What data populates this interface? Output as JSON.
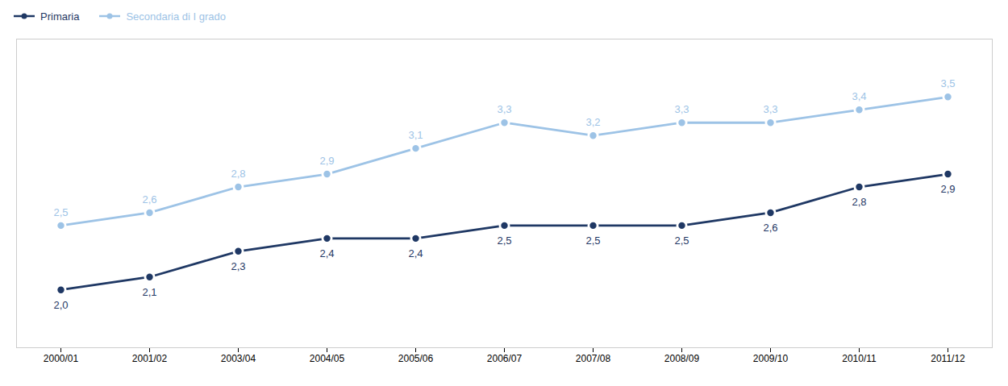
{
  "chart_data": {
    "type": "line",
    "categories": [
      "2000/01",
      "2001/02",
      "2003/04",
      "2004/05",
      "2005/06",
      "2006/07",
      "2007/08",
      "2008/09",
      "2009/10",
      "2010/11",
      "2011/12"
    ],
    "series": [
      {
        "name": "Primaria",
        "color": "#1F3864",
        "values": [
          2.0,
          2.1,
          2.3,
          2.4,
          2.4,
          2.5,
          2.5,
          2.5,
          2.6,
          2.8,
          2.9
        ],
        "value_labels": [
          "2,0",
          "2,1",
          "2,3",
          "2,4",
          "2,4",
          "2,5",
          "2,5",
          "2,5",
          "2,6",
          "2,8",
          "2,9"
        ]
      },
      {
        "name": "Secondaria di I grado",
        "color": "#9DC3E6",
        "values": [
          2.5,
          2.6,
          2.8,
          2.9,
          3.1,
          3.3,
          3.2,
          3.3,
          3.3,
          3.4,
          3.5
        ],
        "value_labels": [
          "2,5",
          "2,6",
          "2,8",
          "2,9",
          "3,1",
          "3,3",
          "3,2",
          "3,3",
          "3,3",
          "3,4",
          "3,5"
        ]
      }
    ],
    "ylim": [
      1.55,
      3.95
    ],
    "tick_labels": "x",
    "data_labels": true,
    "grid": false,
    "legend": "upper left",
    "marker": "circle"
  }
}
